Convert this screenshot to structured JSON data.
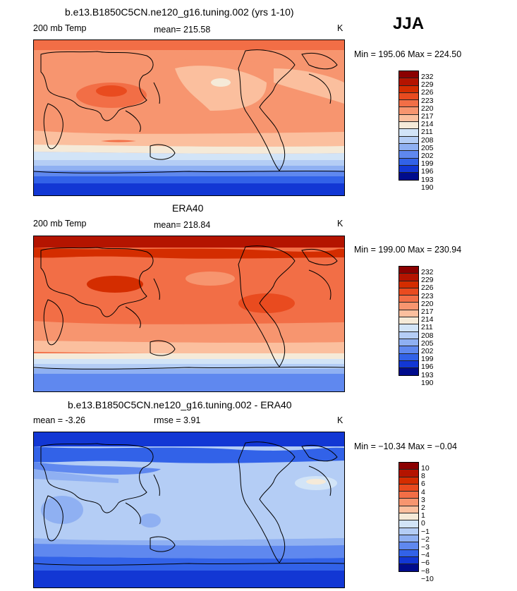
{
  "season": "JJA",
  "panels": [
    {
      "title": "b.e13.B1850C5CN.ne120_g16.tuning.002 (yrs 1-10)",
      "variable": "200 mb Temp",
      "stat_text": "mean=  215.58",
      "units": "K",
      "minmax": "Min = 195.06  Max = 224.50",
      "levels": [
        "232",
        "229",
        "226",
        "223",
        "220",
        "217",
        "214",
        "211",
        "208",
        "205",
        "202",
        "199",
        "196",
        "193",
        "190"
      ]
    },
    {
      "title": "ERA40",
      "variable": "200 mb Temp",
      "stat_text": "mean=  218.84",
      "units": "K",
      "minmax": "Min = 199.00  Max = 230.94",
      "levels": [
        "232",
        "229",
        "226",
        "223",
        "220",
        "217",
        "214",
        "211",
        "208",
        "205",
        "202",
        "199",
        "196",
        "193",
        "190"
      ]
    },
    {
      "title": "b.e13.B1850C5CN.ne120_g16.tuning.002 - ERA40",
      "variable": "mean =   -3.26",
      "stat_text": "rmse =    3.91",
      "units": "K",
      "minmax": "Min = −10.34  Max =  −0.04",
      "levels": [
        "10",
        "8",
        "6",
        "4",
        "3",
        "2",
        "1",
        "0",
        "−1",
        "−2",
        "−3",
        "−4",
        "−6",
        "−8",
        "−10"
      ]
    }
  ],
  "palette": [
    "#8b0000",
    "#b41400",
    "#d42d00",
    "#e94b1f",
    "#f26e46",
    "#f7956f",
    "#fbbf9e",
    "#f5ead8",
    "#d2e4f7",
    "#b4cdf5",
    "#8fb0f2",
    "#5f88ef",
    "#3262e8",
    "#1237d4",
    "#000c8c"
  ]
}
